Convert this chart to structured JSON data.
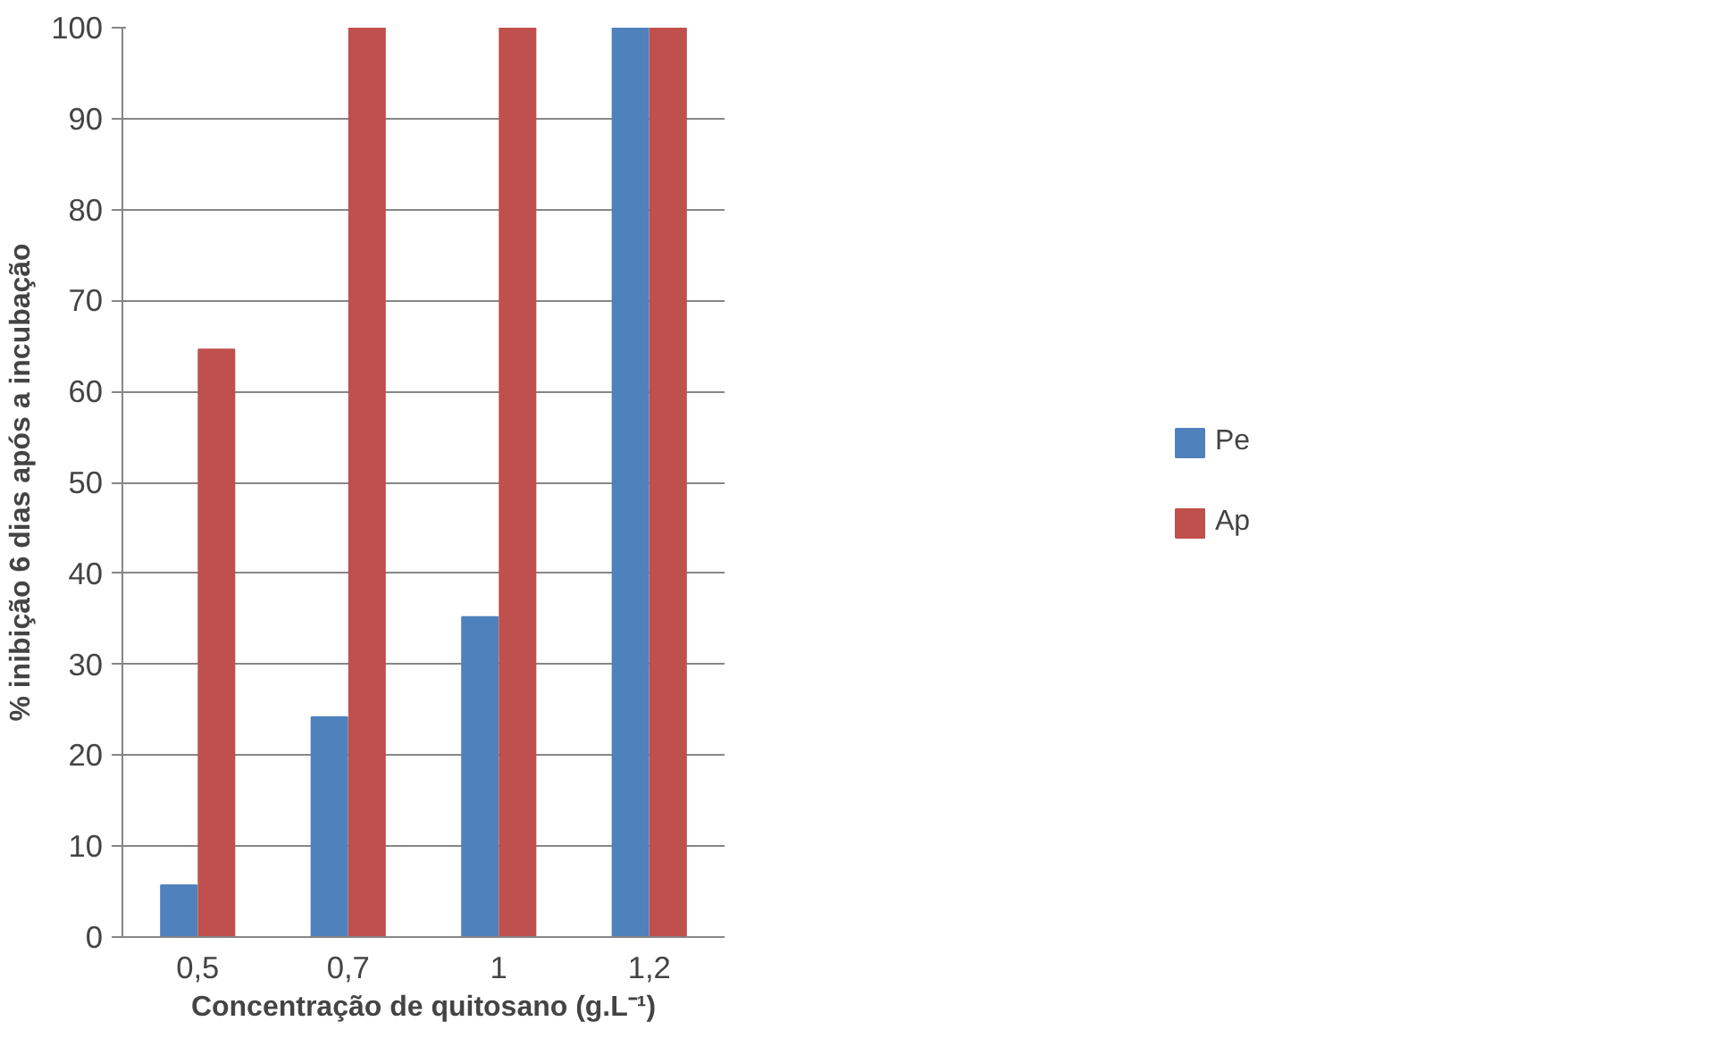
{
  "chart_data": {
    "type": "bar",
    "xlabel": "Concentração de quitosano (g.L⁻¹)",
    "ylabel": "% inibição 6 dias após a incubação",
    "categories": [
      "0,5",
      "0,7",
      "1",
      "1,2"
    ],
    "series": [
      {
        "name": "Pe",
        "color": "#4f81bd",
        "values": [
          5.7,
          24.2,
          35.2,
          100
        ]
      },
      {
        "name": "Ap",
        "color": "#c0504d",
        "values": [
          64.6,
          100,
          100,
          100
        ]
      }
    ],
    "ylim": [
      0,
      100
    ],
    "yticks": [
      0,
      10,
      20,
      30,
      40,
      50,
      60,
      70,
      80,
      90,
      100
    ],
    "grid": "y",
    "legend": "right"
  }
}
